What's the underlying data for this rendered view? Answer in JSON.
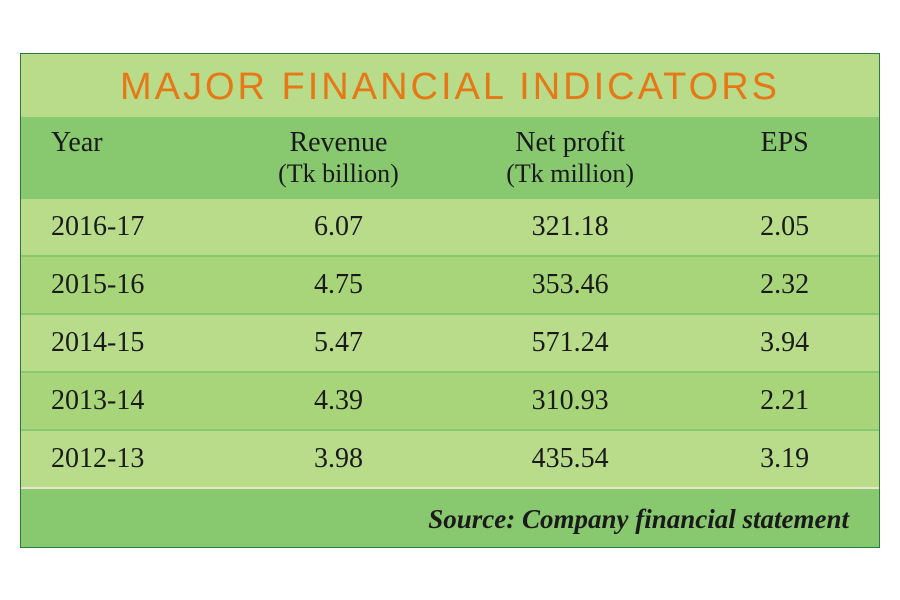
{
  "title": "MAJOR FINANCIAL INDICATORS",
  "title_color": "#e67817",
  "title_fontsize": 38,
  "title_letter_spacing": "3px",
  "header_bg": "#88c86f",
  "row_bg_even": "#b8dc8a",
  "row_bg_odd": "#a8d47a",
  "border_color": "#2d7a3e",
  "text_color": "#1a1a1a",
  "columns": [
    {
      "main": "Year",
      "sub": ""
    },
    {
      "main": "Revenue",
      "sub": "(Tk billion)"
    },
    {
      "main": "Net profit",
      "sub": "(Tk  million)"
    },
    {
      "main": "EPS",
      "sub": ""
    }
  ],
  "rows": [
    {
      "year": "2016-17",
      "revenue": "6.07",
      "profit": "321.18",
      "eps": "2.05"
    },
    {
      "year": "2015-16",
      "revenue": "4.75",
      "profit": "353.46",
      "eps": "2.32"
    },
    {
      "year": "2014-15",
      "revenue": "5.47",
      "profit": "571.24",
      "eps": "3.94"
    },
    {
      "year": "2013-14",
      "revenue": "4.39",
      "profit": "310.93",
      "eps": "2.21"
    },
    {
      "year": "2012-13",
      "revenue": "3.98",
      "profit": "435.54",
      "eps": "3.19"
    }
  ],
  "source_label": "Source: Company financial statement",
  "source_fontsize": 27,
  "body_fontsize": 28,
  "header_fontsize": 28
}
